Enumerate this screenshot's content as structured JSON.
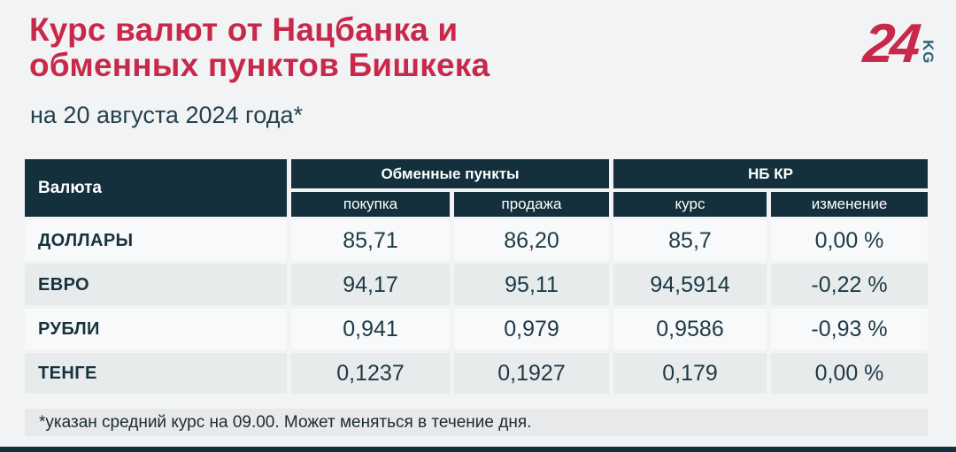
{
  "header": {
    "title_line1": "Курс валют от Нацбанка и",
    "title_line2": "обменных пунктов Бишкека",
    "subtitle": "на 20 августа 2024 года*"
  },
  "logo": {
    "number": "24",
    "country_code": "KG"
  },
  "chart_data": {
    "type": "table",
    "title": "Курс валют от Нацбанка и обменных пунктов Бишкека",
    "subtitle": "на 20 августа 2024 года*",
    "column_groups": [
      "Обменные пункты",
      "НБ КР"
    ],
    "columns": [
      "Валюта",
      "покупка",
      "продажа",
      "курс",
      "изменение"
    ],
    "rows": [
      [
        "ДОЛЛАРЫ",
        "85,71",
        "86,20",
        "85,7",
        "0,00 %"
      ],
      [
        "ЕВРО",
        "94,17",
        "95,11",
        "94,5914",
        "-0,22 %"
      ],
      [
        "РУБЛИ",
        "0,941",
        "0,979",
        "0,9586",
        "-0,93 %"
      ],
      [
        "ТЕНГЕ",
        "0,1237",
        "0,1927",
        "0,179",
        "0,00 %"
      ]
    ],
    "footnote": "*указан средний курс на 09.00. Может меняться в течение дня."
  },
  "colors": {
    "accent_red": "#c8294a",
    "header_teal": "#13303c",
    "logo_kg_blue": "#2d6478",
    "row_gray": "#e8ebec",
    "row_light": "#f8f9fa",
    "page_background": "#f1f3f5"
  }
}
